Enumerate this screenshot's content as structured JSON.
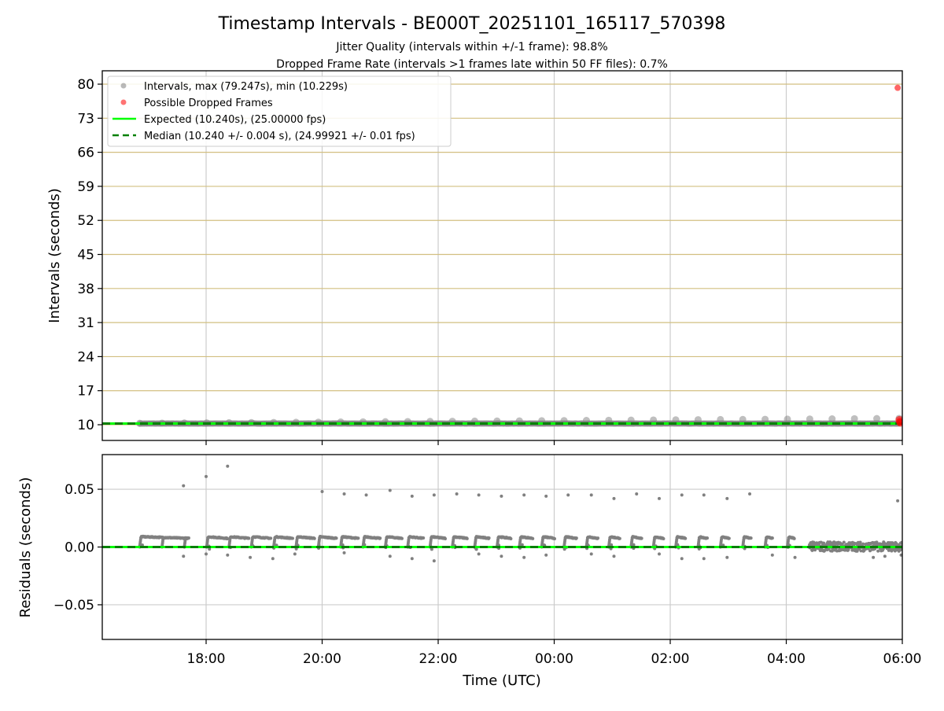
{
  "chart_data": {
    "type": "scatter",
    "title": "Timestamp Intervals - BE000T_20251101_165117_570398",
    "subtitles": [
      "Jitter Quality (intervals within +/-1 frame): 98.8%",
      "Dropped Frame Rate (intervals >1 frames late within 50 FF files): 0.7%"
    ],
    "xlabel": "Time (UTC)",
    "x_units": "hours since 16:00 UTC",
    "xlim": [
      0.21,
      14.0
    ],
    "x_ticks": [
      {
        "value": 2,
        "label": "18:00"
      },
      {
        "value": 4,
        "label": "20:00"
      },
      {
        "value": 6,
        "label": "22:00"
      },
      {
        "value": 8,
        "label": "00:00"
      },
      {
        "value": 10,
        "label": "02:00"
      },
      {
        "value": 12,
        "label": "04:00"
      },
      {
        "value": 14,
        "label": "06:00"
      }
    ],
    "panels": [
      {
        "name": "intervals",
        "ylabel": "Intervals (seconds)",
        "ylim": [
          6.77,
          82.75
        ],
        "y_ticks": [
          10,
          17,
          24,
          31,
          38,
          45,
          52,
          59,
          66,
          73,
          80
        ],
        "expected": 10.24,
        "median": 10.24,
        "data_start": 0.855,
        "data_end": 13.95,
        "period_hours": 0.385,
        "periodic_peaks": {
          "start": 10.3,
          "end": 11.3
        },
        "dropped_frames": [
          [
            13.92,
            79.247
          ],
          [
            13.95,
            11.0
          ],
          [
            13.96,
            10.6
          ],
          [
            13.97,
            10.4
          ]
        ]
      },
      {
        "name": "residuals",
        "ylabel": "Residuals (seconds)",
        "ylim": [
          -0.08,
          0.08
        ],
        "y_ticks": [
          {
            "value": 0.05,
            "label": "0.05"
          },
          {
            "value": 0.0,
            "label": "0.00"
          },
          {
            "value": -0.05,
            "label": "−0.05"
          }
        ],
        "band_level": 0.008,
        "noisy_segment": [
          12.4,
          14.0
        ],
        "outliers": [
          [
            1.61,
            0.053
          ],
          [
            2.0,
            0.061
          ],
          [
            2.37,
            0.07
          ],
          [
            4.0,
            0.048
          ],
          [
            4.38,
            0.046
          ],
          [
            4.76,
            0.045
          ],
          [
            5.17,
            0.049
          ],
          [
            5.55,
            0.044
          ],
          [
            5.93,
            0.045
          ],
          [
            6.32,
            0.046
          ],
          [
            6.7,
            0.045
          ],
          [
            7.09,
            0.044
          ],
          [
            7.48,
            0.045
          ],
          [
            7.86,
            0.044
          ],
          [
            8.24,
            0.045
          ],
          [
            8.64,
            0.045
          ],
          [
            9.03,
            0.042
          ],
          [
            9.42,
            0.046
          ],
          [
            9.81,
            0.042
          ],
          [
            10.2,
            0.045
          ],
          [
            10.58,
            0.045
          ],
          [
            10.98,
            0.042
          ],
          [
            11.37,
            0.046
          ],
          [
            13.92,
            0.04
          ]
        ],
        "negative_outliers": [
          [
            1.61,
            -0.008
          ],
          [
            2.0,
            -0.006
          ],
          [
            2.37,
            -0.007
          ],
          [
            2.76,
            -0.009
          ],
          [
            3.15,
            -0.01
          ],
          [
            3.53,
            -0.006
          ],
          [
            4.38,
            -0.005
          ],
          [
            5.17,
            -0.008
          ],
          [
            5.55,
            -0.01
          ],
          [
            5.93,
            -0.012
          ],
          [
            6.7,
            -0.006
          ],
          [
            7.09,
            -0.008
          ],
          [
            7.48,
            -0.009
          ],
          [
            7.86,
            -0.007
          ],
          [
            8.64,
            -0.006
          ],
          [
            9.03,
            -0.008
          ],
          [
            9.81,
            -0.006
          ],
          [
            10.2,
            -0.01
          ],
          [
            10.58,
            -0.01
          ],
          [
            10.98,
            -0.009
          ],
          [
            11.76,
            -0.007
          ],
          [
            12.15,
            -0.009
          ],
          [
            13.5,
            -0.009
          ],
          [
            13.7,
            -0.008
          ],
          [
            13.98,
            -0.007
          ]
        ]
      }
    ],
    "legend": {
      "placement": "upper-left",
      "entries": [
        {
          "label": "Intervals, max (79.247s), min (10.229s)",
          "marker": "dot",
          "color": "#808080"
        },
        {
          "label": "Possible Dropped Frames",
          "marker": "dot",
          "color": "#ff0000"
        },
        {
          "label": "Expected (10.240s), (25.00000 fps)",
          "marker": "line",
          "color": "#00ff00"
        },
        {
          "label": "Median (10.240 +/- 0.004 s), (24.99921 +/- 0.01 fps)",
          "marker": "dashed",
          "color": "#008000"
        }
      ]
    },
    "colors": {
      "interval": "#808080",
      "dropped": "#ff0000",
      "expected": "#00ff00",
      "median": "#008000",
      "hgrid_top": "#d2bf80",
      "grid": "#cccccc"
    }
  }
}
